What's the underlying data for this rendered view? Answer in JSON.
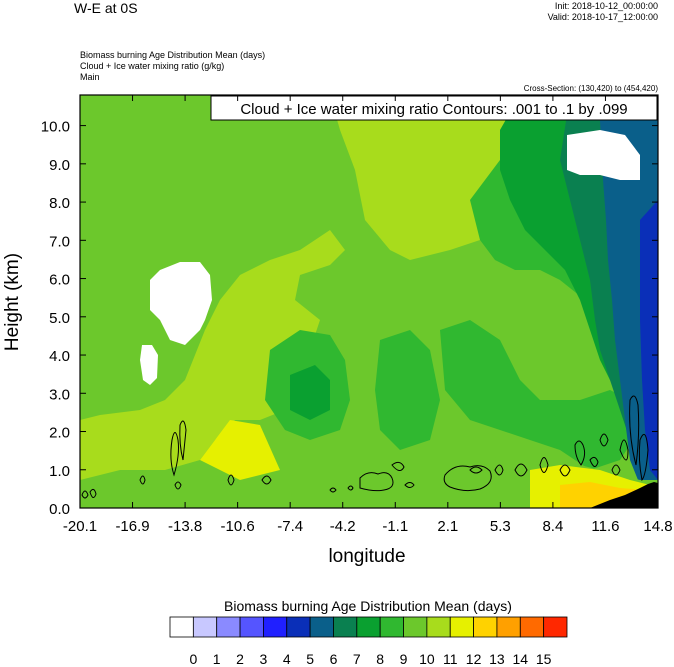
{
  "header": {
    "title": "W-E at 0S",
    "init": "Init: 2018-10-12_00:00:00",
    "valid": "Valid: 2018-10-17_12:00:00",
    "fields": [
      "Biomass burning Age Distribution Mean   (days)",
      "Cloud + Ice water mixing ratio   (g/kg)",
      "Main"
    ],
    "cross_section": "Cross-Section: (130,420) to (454,420)"
  },
  "chart_data": {
    "type": "heatmap",
    "title": "Cloud + Ice water mixing ratio Contours: .001 to .1 by .099",
    "xlabel": "longitude",
    "ylabel": "Height (km)",
    "x_ticks": [
      "-20.1",
      "-16.9",
      "-13.8",
      "-10.6",
      "-7.4",
      "-4.2",
      "-1.1",
      "2.1",
      "5.3",
      "8.4",
      "11.6",
      "14.8"
    ],
    "y_ticks": [
      "0.0",
      "1.0",
      "2.0",
      "3.0",
      "4.0",
      "5.0",
      "6.0",
      "7.0",
      "8.0",
      "9.0",
      "10.0"
    ],
    "xlim": [
      -20.1,
      14.8
    ],
    "ylim": [
      0,
      10.8
    ],
    "colorbar": {
      "title": "Biomass burning Age Distribution Mean  (days)",
      "labels": [
        "0",
        "1",
        "2",
        "3",
        "4",
        "5",
        "6",
        "7",
        "8",
        "9",
        "10",
        "11",
        "12",
        "13",
        "14",
        "15"
      ],
      "colors": [
        "#ffffff",
        "#c8c8ff",
        "#8a8aff",
        "#5555ff",
        "#2020ff",
        "#0a2fb8",
        "#0a5f8a",
        "#0a8050",
        "#0aa030",
        "#30b830",
        "#6cc82c",
        "#a8dc1c",
        "#e6f000",
        "#ffd200",
        "#ffa000",
        "#ff6a00",
        "#ff2800"
      ]
    }
  }
}
